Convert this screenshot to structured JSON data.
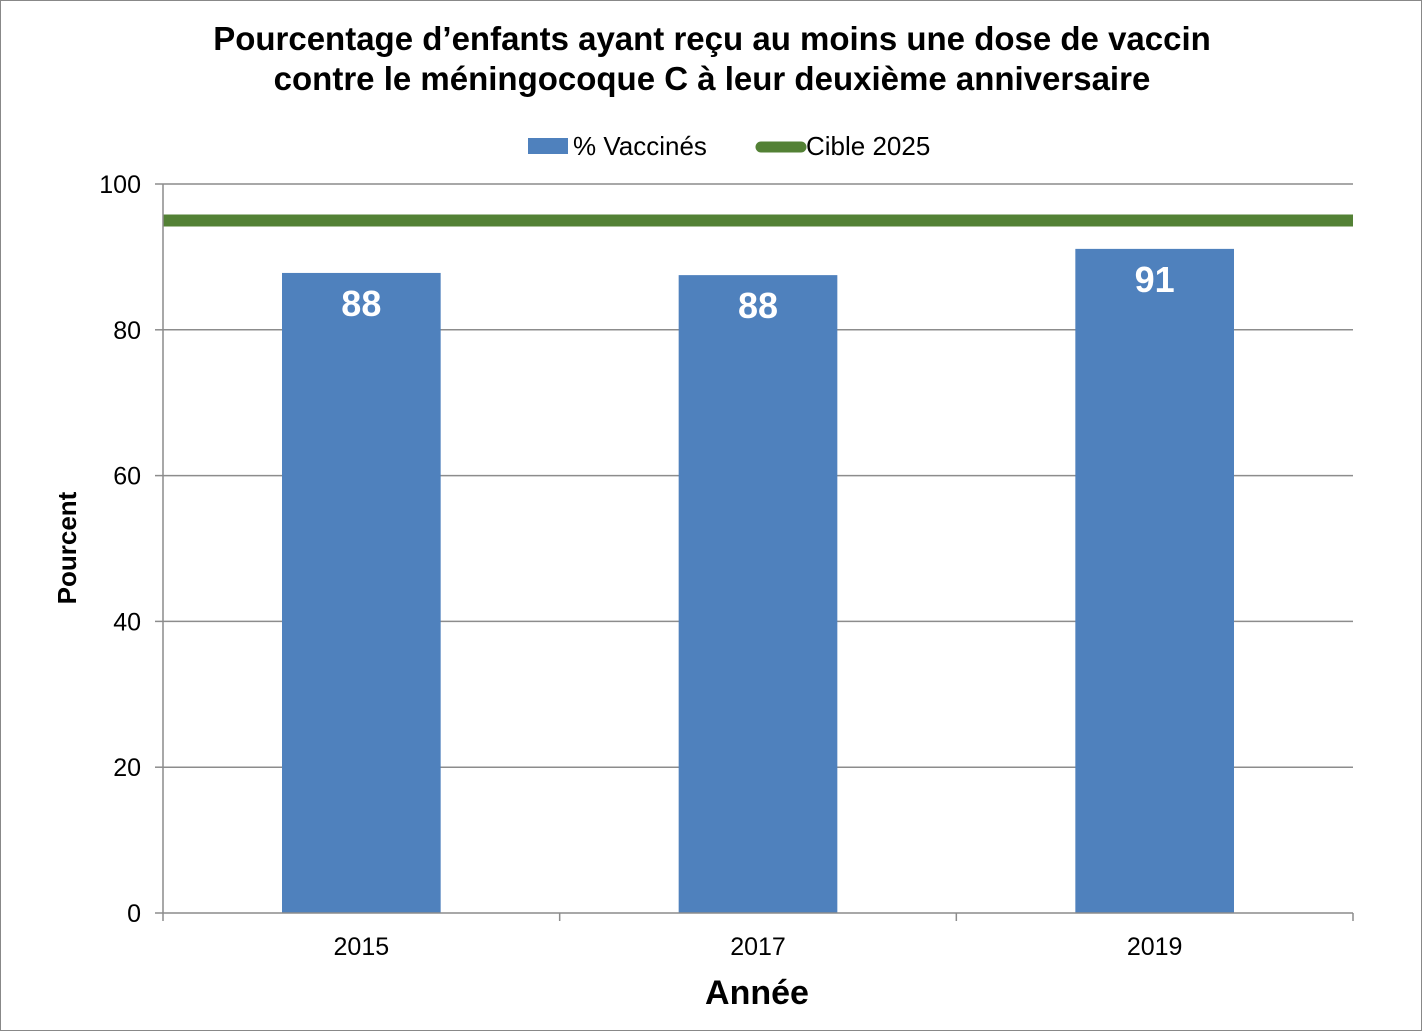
{
  "chart_data": {
    "type": "bar",
    "title_lines": [
      "Pourcentage d’enfants ayant reçu au moins une dose de vaccin",
      "contre le méningocoque C à leur deuxième anniversaire"
    ],
    "xlabel": "Année",
    "ylabel": "Pourcent",
    "categories": [
      "2015",
      "2017",
      "2019"
    ],
    "series": [
      {
        "name": "% Vaccinés",
        "type": "bar",
        "color": "#4f81bd",
        "values": [
          87.8,
          87.5,
          91.1
        ],
        "data_labels": [
          "88",
          "88",
          "91"
        ]
      }
    ],
    "reference_lines": [
      {
        "name": "Cible 2025",
        "value": 95,
        "color": "#538135"
      }
    ],
    "ylim": [
      0,
      100
    ],
    "yticks": [
      0,
      20,
      40,
      60,
      80,
      100
    ],
    "ytick_labels": [
      "0",
      "20",
      "40",
      "60",
      "80",
      "100"
    ],
    "grid": true,
    "legend_position": "top"
  }
}
